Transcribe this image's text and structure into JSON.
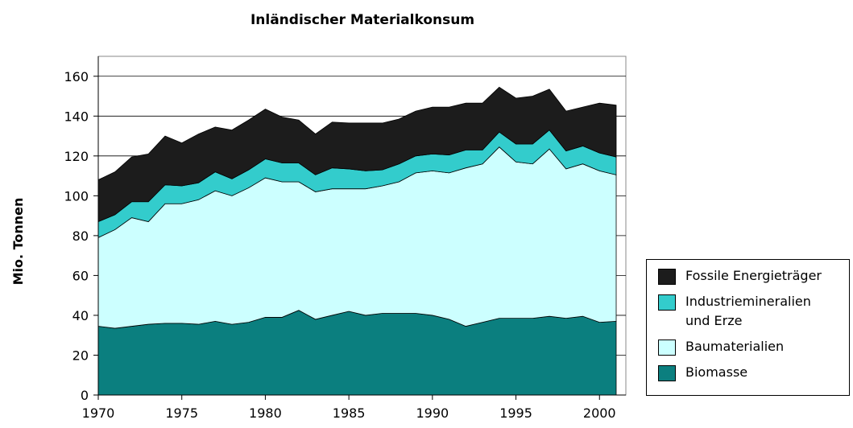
{
  "chart_data": {
    "type": "stacked_area",
    "title": "Inländischer Materialkonsum",
    "ylabel": "Mio. Tonnen",
    "x": [
      1970,
      1971,
      1972,
      1973,
      1974,
      1975,
      1976,
      1977,
      1978,
      1979,
      1980,
      1981,
      1982,
      1983,
      1984,
      1985,
      1986,
      1987,
      1988,
      1989,
      1990,
      1991,
      1992,
      1993,
      1994,
      1995,
      1996,
      1997,
      1998,
      1999,
      2000,
      2001
    ],
    "series": [
      {
        "name": "Biomasse",
        "color": "#0b7f7f",
        "values": [
          34.5,
          33.5,
          34.5,
          35.5,
          36,
          36,
          35.5,
          37,
          35.5,
          36.5,
          39,
          39,
          42.5,
          38,
          40,
          42,
          40,
          41,
          41,
          41,
          40,
          38,
          34.5,
          36.5,
          38.5,
          38.5,
          38.5,
          39.5,
          38.5,
          39.5,
          36.5,
          37
        ]
      },
      {
        "name": "Baumaterialien",
        "color": "#ccffff",
        "values": [
          44.5,
          49.5,
          54.5,
          51.5,
          60,
          60,
          62.5,
          65.5,
          64.5,
          67.5,
          70,
          68,
          64.5,
          64,
          63.5,
          61.5,
          63.5,
          64,
          66,
          70.5,
          72.5,
          73.5,
          79.5,
          79.5,
          86,
          78.5,
          77.5,
          84,
          75,
          76.5,
          76,
          73.5
        ]
      },
      {
        "name": "Industriemineralien und Erze",
        "color": "#33cccc",
        "values": [
          8,
          7.5,
          8,
          10,
          9.5,
          9,
          8.5,
          9.5,
          8.5,
          9,
          9.5,
          9.5,
          9.5,
          8.5,
          10.5,
          10,
          9,
          8,
          9,
          8.5,
          8.5,
          9,
          9,
          7,
          7.5,
          9,
          10,
          9.5,
          9,
          9,
          9,
          9
        ]
      },
      {
        "name": "Fossile Energieträger",
        "color": "#1c1c1c",
        "values": [
          21,
          21.5,
          22.5,
          24,
          24.5,
          21.5,
          24.5,
          22.5,
          24.5,
          25,
          25,
          23,
          21.5,
          20.5,
          23,
          23,
          24,
          23.5,
          22.5,
          22.5,
          23.5,
          24,
          23.5,
          23.5,
          22.5,
          23,
          24,
          20.5,
          20,
          19.5,
          25,
          26
        ]
      }
    ],
    "xlim": [
      1970,
      2001
    ],
    "xticks": [
      1970,
      1975,
      1980,
      1985,
      1990,
      1995,
      2000
    ],
    "ylim": [
      0,
      170
    ],
    "yticks": [
      0,
      20,
      40,
      60,
      80,
      100,
      120,
      140,
      160
    ],
    "grid": true,
    "legend": "right"
  }
}
